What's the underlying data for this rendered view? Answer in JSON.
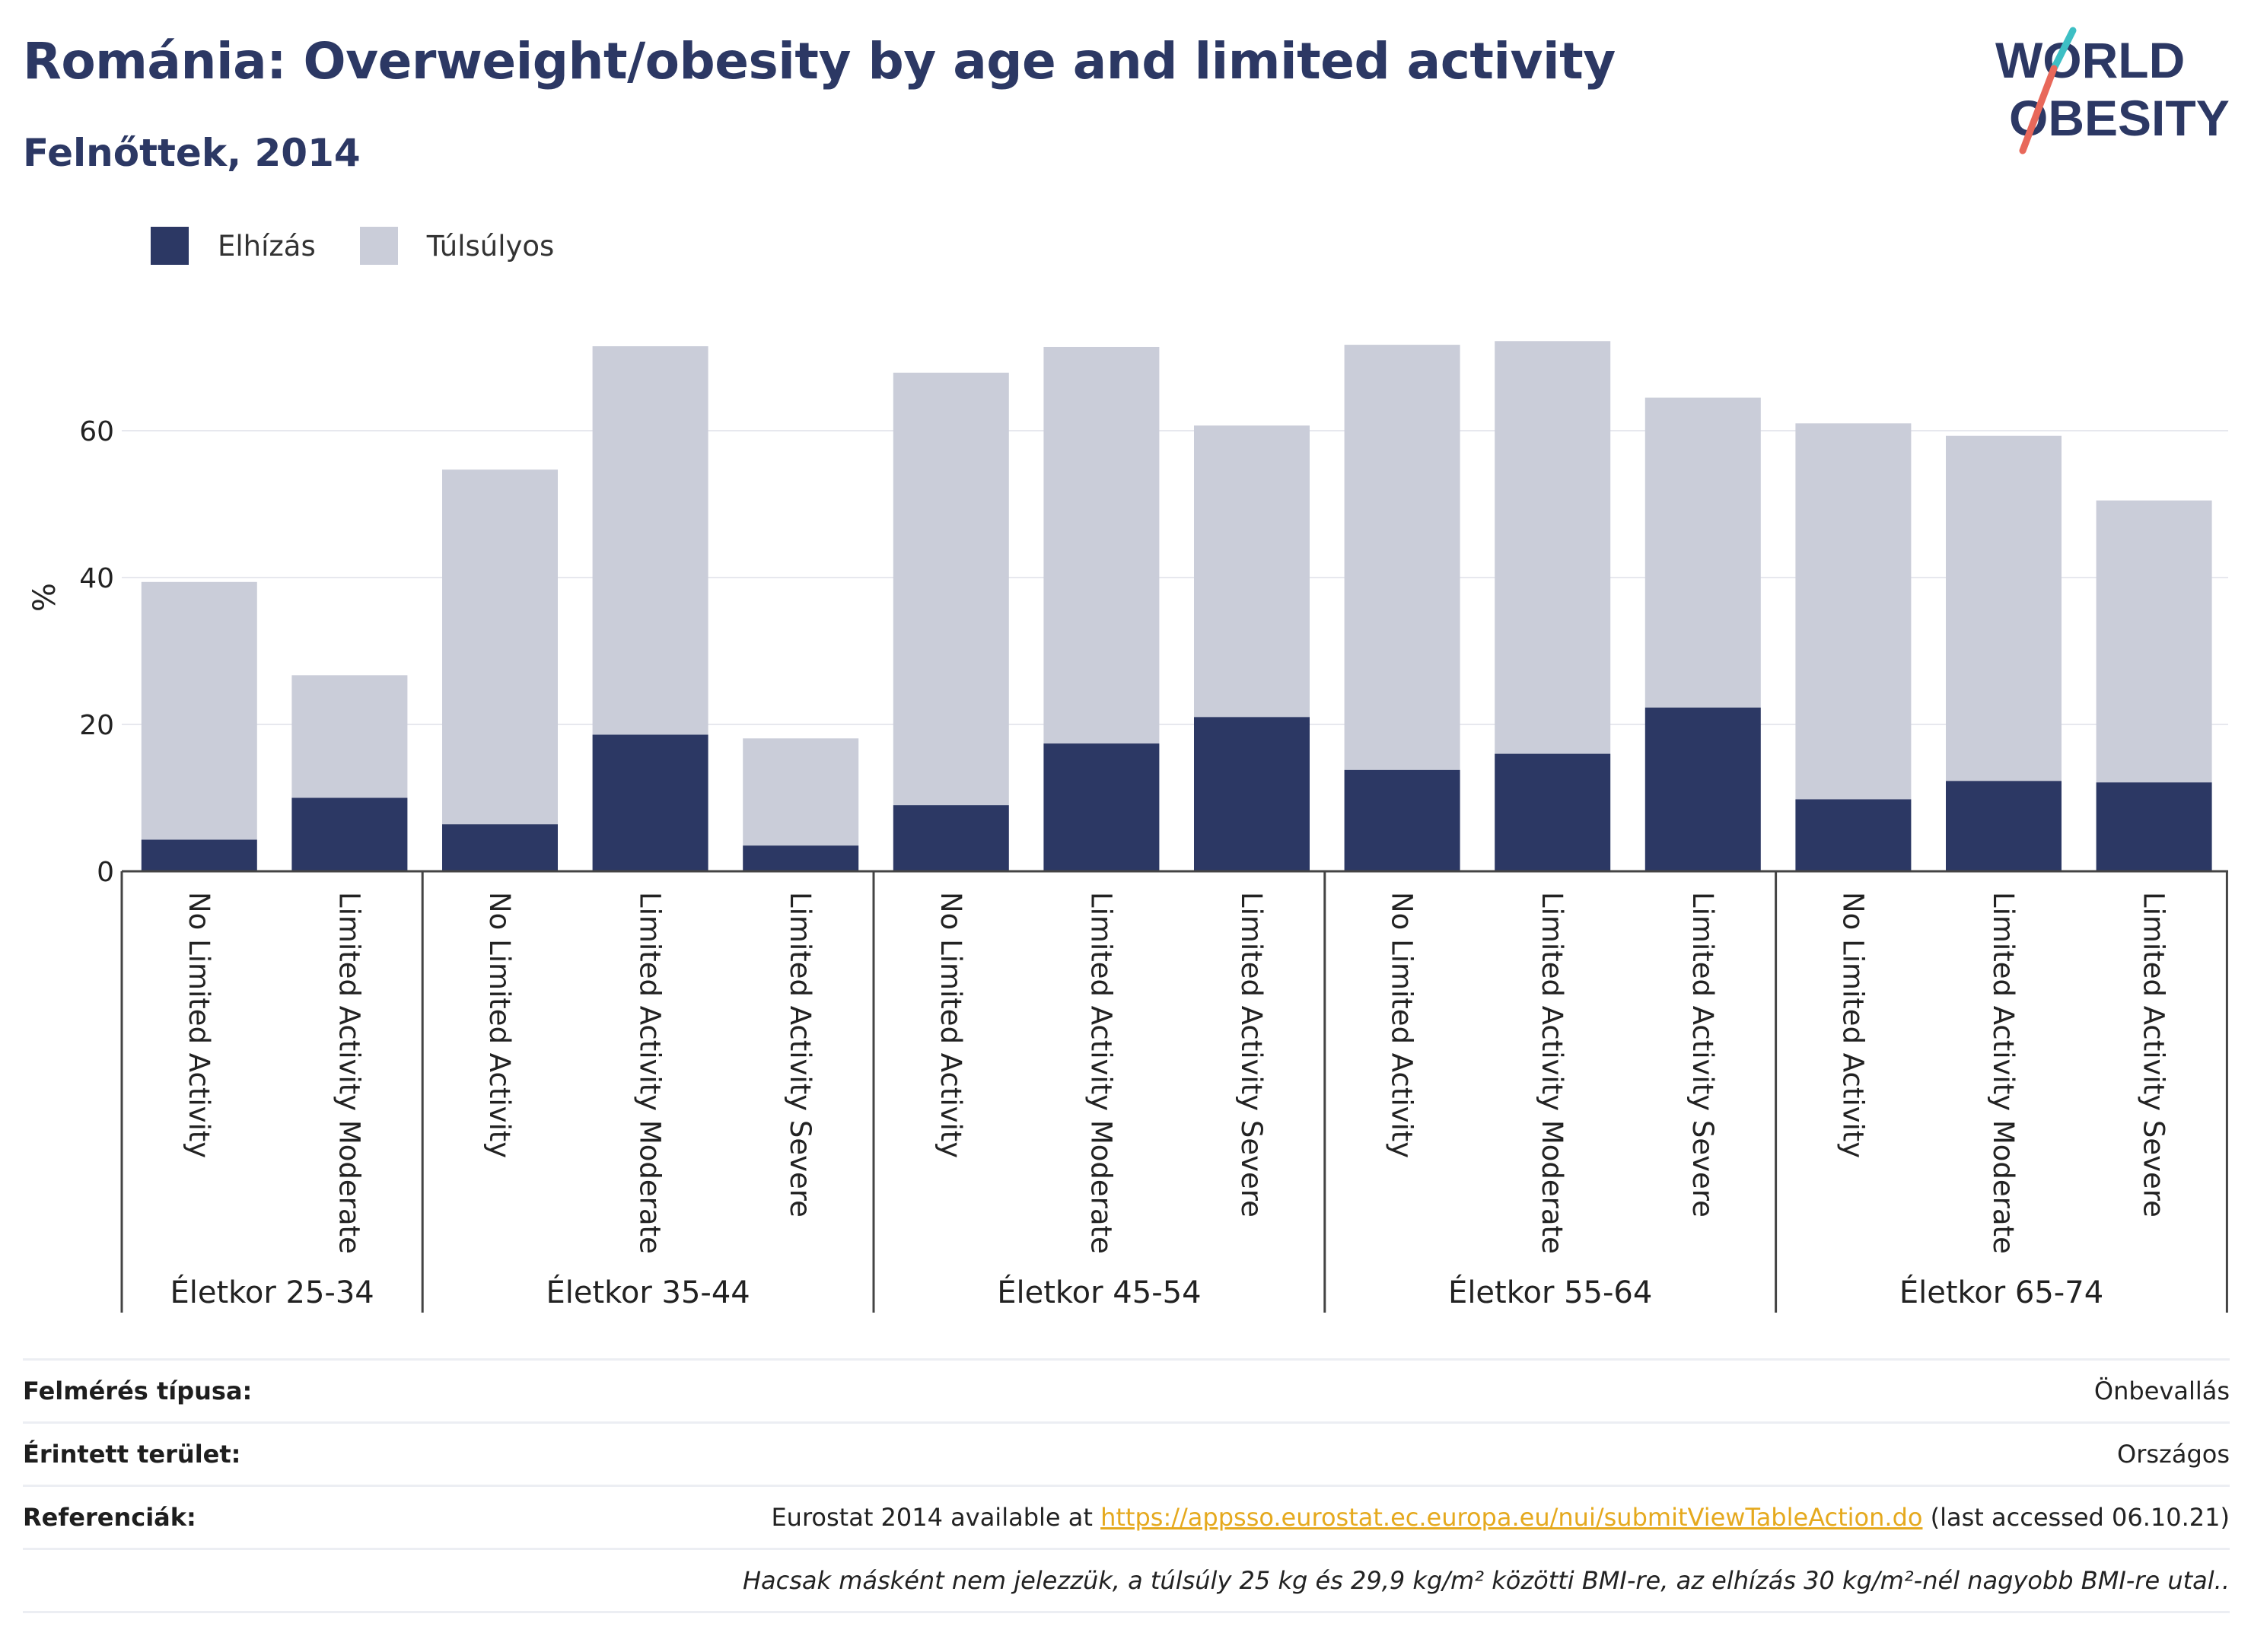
{
  "header": {
    "title": "Románia: Overweight/obesity by age and limited activity",
    "subtitle": "Felnőttek, 2014"
  },
  "logo": {
    "line1": "WORLD",
    "line2": "OBESITY",
    "colors": {
      "text": "#2c3864",
      "slash_teal": "#3dbfc4",
      "slash_red": "#e8685a"
    }
  },
  "legend": [
    {
      "label": "Elhízás",
      "color": "#2c3864"
    },
    {
      "label": "Túlsúlyos",
      "color": "#cacdd9"
    }
  ],
  "chart_data": {
    "type": "bar",
    "stacked": true,
    "ylabel": "%",
    "ylim": [
      0,
      75
    ],
    "yticks": [
      0,
      20,
      40,
      60
    ],
    "grid": true,
    "legend_position": "top-left",
    "groups": [
      {
        "label": "Életkor 25-34",
        "categories": [
          "No Limited Activity",
          "Limited Activity Moderate"
        ]
      },
      {
        "label": "Életkor 35-44",
        "categories": [
          "No Limited Activity",
          "Limited Activity Moderate",
          "Limited Activity Severe"
        ]
      },
      {
        "label": "Életkor 45-54",
        "categories": [
          "No Limited Activity",
          "Limited Activity Moderate",
          "Limited Activity Severe"
        ]
      },
      {
        "label": "Életkor 55-64",
        "categories": [
          "No Limited Activity",
          "Limited Activity Moderate",
          "Limited Activity Severe"
        ]
      },
      {
        "label": "Életkor 65-74",
        "categories": [
          "No Limited Activity",
          "Limited Activity Moderate",
          "Limited Activity Severe"
        ]
      }
    ],
    "series": [
      {
        "name": "Elhízás",
        "color": "#2c3864",
        "values": [
          4.3,
          10.0,
          6.4,
          18.6,
          3.5,
          9.0,
          17.4,
          21.0,
          13.8,
          16.0,
          22.3,
          9.8,
          12.3,
          12.1
        ]
      },
      {
        "name": "Túlsúlyos",
        "color": "#cacdd9",
        "values": [
          35.1,
          16.7,
          48.3,
          52.9,
          14.6,
          58.9,
          54.0,
          39.7,
          57.9,
          56.2,
          42.2,
          51.2,
          47.0,
          38.4
        ]
      }
    ]
  },
  "footer": {
    "rows": [
      {
        "key": "Felmérés típusa:",
        "value": "Önbevallás"
      },
      {
        "key": "Érintett terület:",
        "value": "Országos"
      },
      {
        "key": "Referenciák:",
        "value_prefix": "Eurostat 2014 available at ",
        "link": "https://appsso.eurostat.ec.europa.eu/nui/submitViewTableAction.do",
        "value_suffix": " (last accessed 06.10.21)"
      }
    ],
    "note": "Hacsak másként nem jelezzük, a túlsúly 25 kg és 29,9 kg/m² közötti BMI-re, az elhízás 30 kg/m²-nél nagyobb BMI-re utal.."
  }
}
